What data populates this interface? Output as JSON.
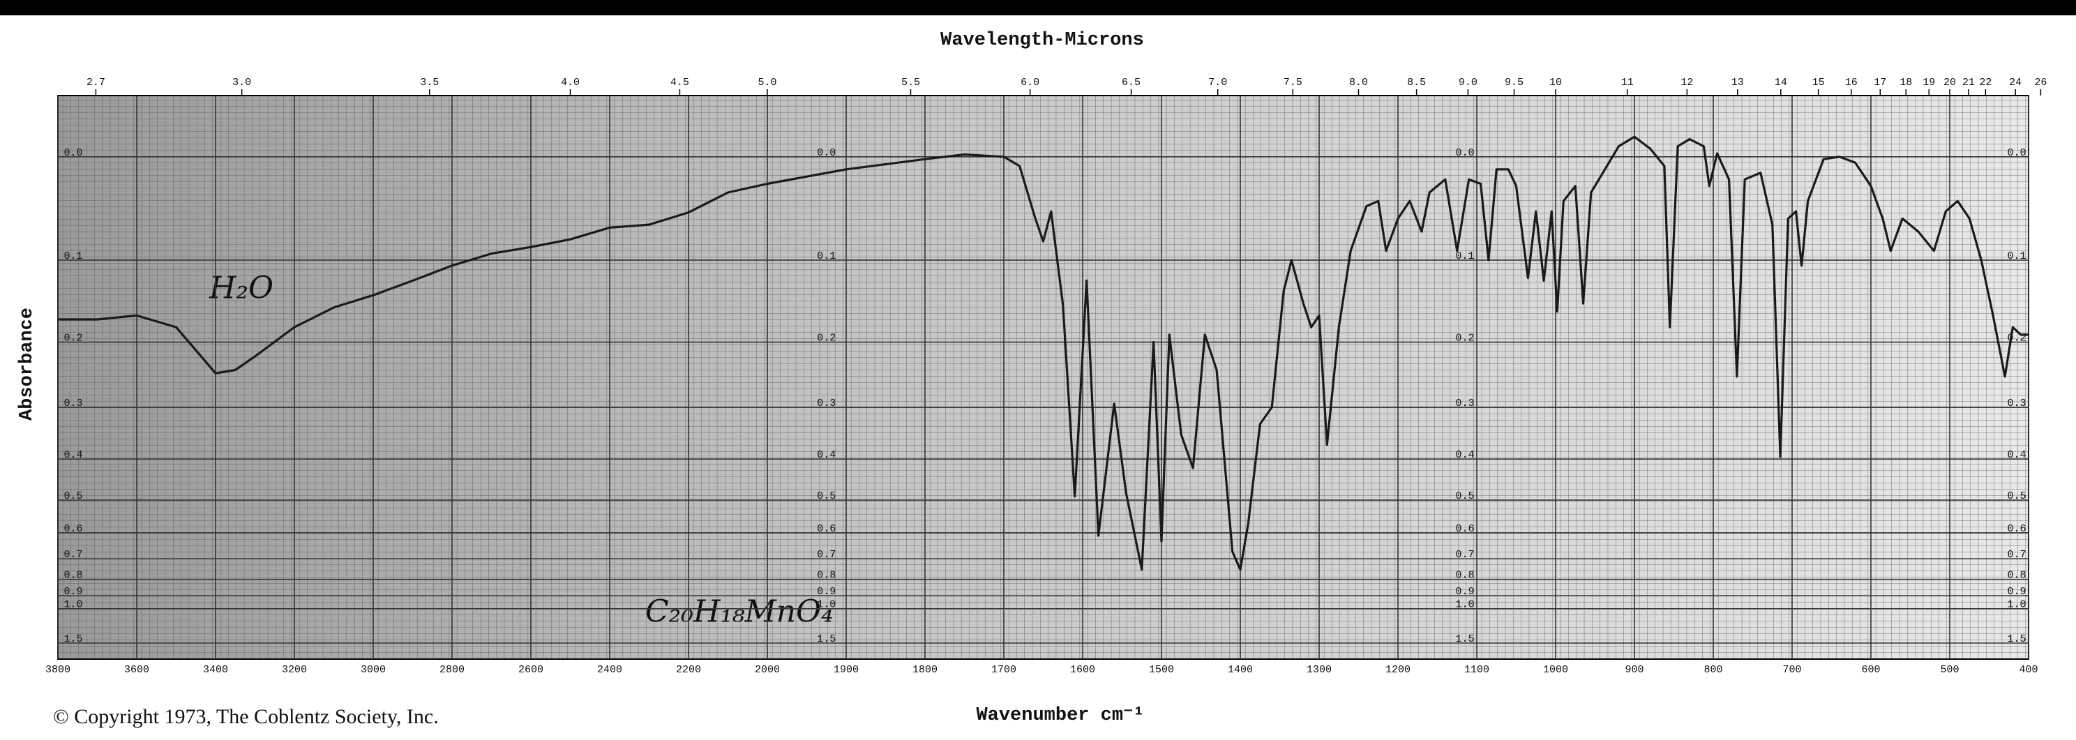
{
  "chart_data": {
    "type": "line",
    "title": "Wavelength-Microns",
    "xlabel": "Wavenumber cm⁻¹",
    "ylabel": "Absorbance",
    "copyright": "© Copyright 1973, The Coblentz Society, Inc.",
    "annotations": [
      "H₂O",
      "C₂₀H₁₈MnO₄"
    ],
    "x": [
      3800,
      3700,
      3600,
      3500,
      3400,
      3350,
      3300,
      3200,
      3100,
      3000,
      2900,
      2800,
      2700,
      2600,
      2500,
      2400,
      2300,
      2200,
      2100,
      2000,
      1900,
      1800,
      1750,
      1700,
      1680,
      1660,
      1650,
      1640,
      1625,
      1610,
      1595,
      1580,
      1560,
      1545,
      1525,
      1510,
      1500,
      1490,
      1475,
      1460,
      1445,
      1430,
      1410,
      1400,
      1390,
      1375,
      1360,
      1345,
      1335,
      1320,
      1310,
      1300,
      1290,
      1275,
      1260,
      1240,
      1225,
      1215,
      1200,
      1185,
      1170,
      1160,
      1140,
      1125,
      1110,
      1095,
      1085,
      1075,
      1060,
      1050,
      1035,
      1025,
      1015,
      1005,
      998,
      990,
      975,
      965,
      955,
      940,
      920,
      900,
      880,
      862,
      855,
      845,
      830,
      812,
      805,
      795,
      780,
      770,
      760,
      740,
      725,
      715,
      705,
      695,
      688,
      680,
      660,
      640,
      620,
      600,
      585,
      575,
      560,
      540,
      520,
      505,
      490,
      475,
      460,
      445,
      430,
      420,
      410,
      400
    ],
    "values": [
      0.17,
      0.17,
      0.165,
      0.18,
      0.245,
      0.24,
      0.22,
      0.18,
      0.155,
      0.14,
      0.123,
      0.106,
      0.093,
      0.086,
      0.078,
      0.066,
      0.063,
      0.051,
      0.032,
      0.024,
      0.011,
      0.002,
      -0.002,
      0,
      0.008,
      0.057,
      0.08,
      0.05,
      0.152,
      0.49,
      0.123,
      0.61,
      0.294,
      0.48,
      0.75,
      0.2,
      0.63,
      0.19,
      0.35,
      0.42,
      0.19,
      0.24,
      0.67,
      0.75,
      0.57,
      0.33,
      0.3,
      0.135,
      0.1,
      0.15,
      0.18,
      0.165,
      0.37,
      0.18,
      0.09,
      0.045,
      0.04,
      0.09,
      0.057,
      0.04,
      0.07,
      0.032,
      0.02,
      0.09,
      0.02,
      0.024,
      0.1,
      0.011,
      0.011,
      0.026,
      0.12,
      0.05,
      0.123,
      0.05,
      0.16,
      0.04,
      0.026,
      0.15,
      0.032,
      0.014,
      -0.009,
      -0.017,
      -0.007,
      0.008,
      0.18,
      -0.009,
      -0.015,
      -0.009,
      0.026,
      -0.003,
      0.02,
      0.25,
      0.02,
      0.014,
      0.063,
      0.395,
      0.057,
      0.05,
      0.106,
      0.04,
      0.002,
      0,
      0.005,
      0.026,
      0.057,
      0.09,
      0.057,
      0.07,
      0.09,
      0.05,
      0.04,
      0.057,
      0.1,
      0.165,
      0.25,
      0.18,
      0.19,
      0.19
    ],
    "color": "#1a1a1a",
    "xlim": [
      3800,
      400
    ],
    "x_break": 2000,
    "xticks": [
      3800,
      3600,
      3400,
      3200,
      3000,
      2800,
      2600,
      2400,
      2200,
      2000,
      1900,
      1800,
      1700,
      1600,
      1500,
      1400,
      1300,
      1200,
      1100,
      1000,
      900,
      800,
      700,
      600,
      500,
      400
    ],
    "top_ticks": [
      2.7,
      {
        "value": 3,
        "label": "3.0"
      },
      3.5,
      {
        "value": 4,
        "label": "4.0"
      },
      4.5,
      {
        "value": 5,
        "label": "5.0"
      },
      5.5,
      {
        "value": 6,
        "label": "6.0"
      },
      6.5,
      {
        "value": 7,
        "label": "7.0"
      },
      7.5,
      {
        "value": 8,
        "label": "8.0"
      },
      8.5,
      {
        "value": 9,
        "label": "9.0"
      },
      9.5,
      10,
      11,
      12,
      13,
      14,
      15,
      16,
      17,
      18,
      19,
      20,
      21,
      22,
      24,
      26
    ],
    "ylim": [
      1.5,
      -0.05
    ],
    "yscale": "transmittance",
    "yticks": [
      {
        "value": 0,
        "label": "0.0"
      },
      0.1,
      0.2,
      0.3,
      0.4,
      0.5,
      0.6,
      0.7,
      0.8,
      0.9,
      {
        "value": 1,
        "label": "1.0"
      },
      1.5
    ],
    "grid": true
  }
}
